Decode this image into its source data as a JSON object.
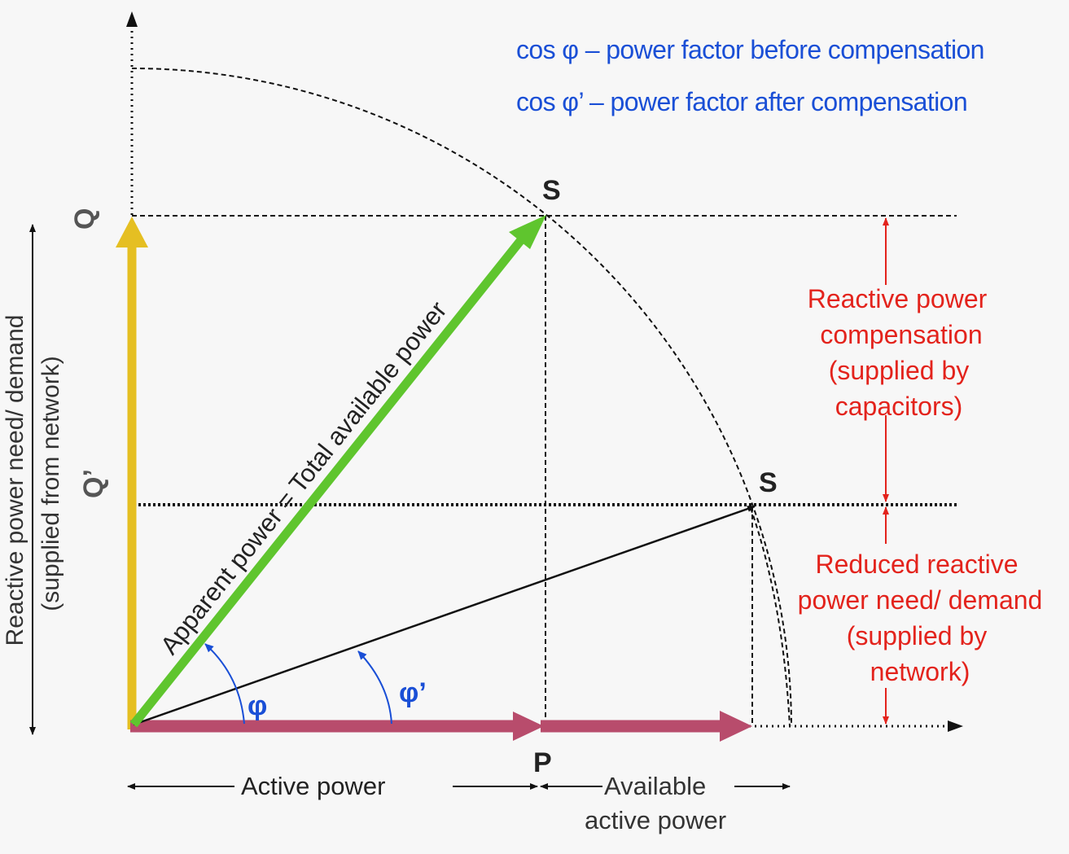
{
  "legend": {
    "line1": "cos φ – power factor before compensation",
    "line2": "cos φ’ – power factor after compensation"
  },
  "labels": {
    "s_upper": "S",
    "s_lower": "S",
    "q": "Q",
    "q_prime": "Q’",
    "p": "P",
    "phi": "φ",
    "phi_prime": "φ’",
    "apparent_power": "Apparent power = Total available power",
    "active_power": "Active power",
    "available_line1": "Available",
    "available_line2": "active power",
    "y_axis_line1": "Reactive power need/ demand",
    "y_axis_line2": "(supplied from network)"
  },
  "annotations": {
    "compensation": [
      "Reactive power",
      "compensation",
      "(supplied by",
      "capacitors)"
    ],
    "reduced": [
      "Reduced reactive",
      "power need/ demand",
      "(supplied by",
      "network)"
    ]
  },
  "colors": {
    "yellow_arrow": "#e5bf22",
    "green_arrow": "#5fc52e",
    "red_arrow": "#b84c6c",
    "blue_text": "#1a4fd6",
    "red_text": "#e3231c"
  }
}
